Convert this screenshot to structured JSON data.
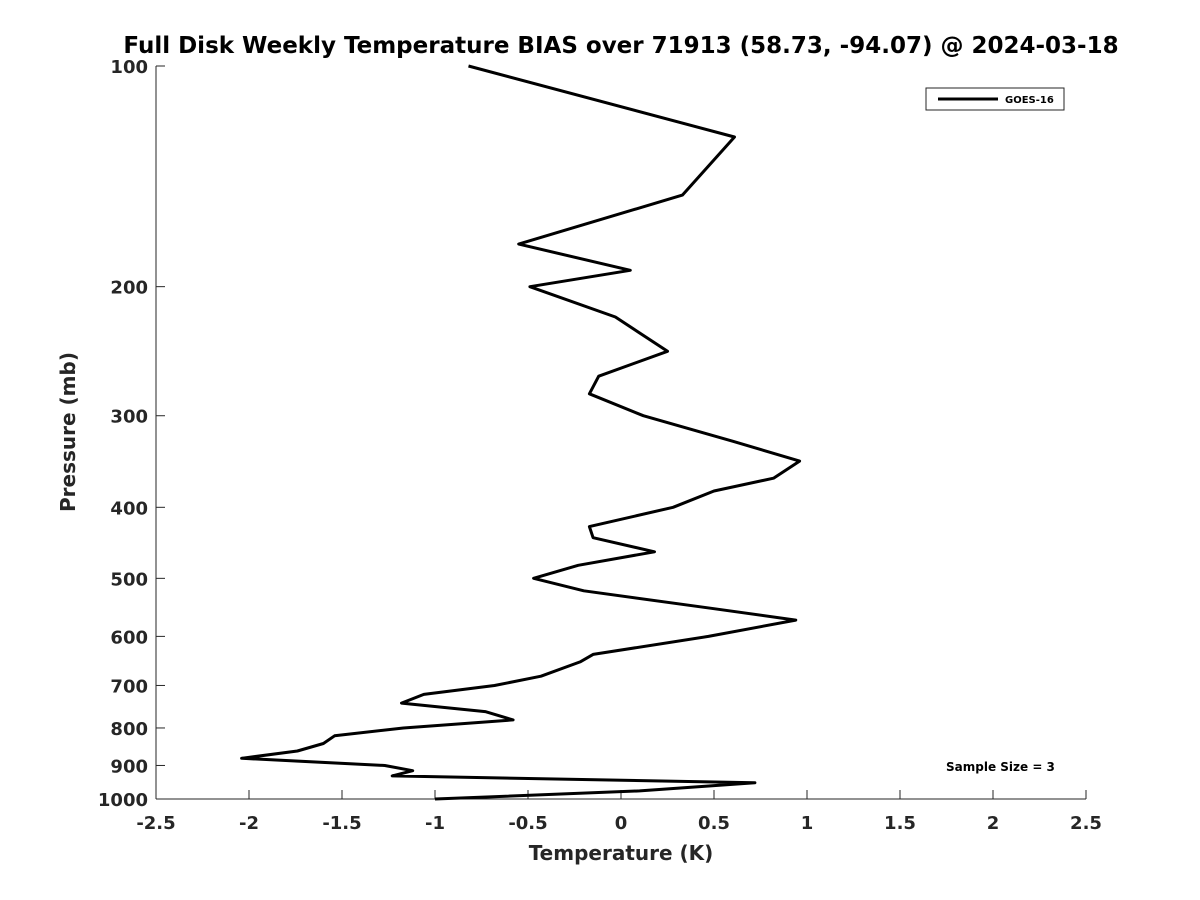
{
  "chart_data": {
    "type": "line",
    "title": "Full Disk Weekly Temperature BIAS over 71913 (58.73, -94.07) @ 2024-03-18",
    "xlabel": "Temperature (K)",
    "ylabel": "Pressure (mb)",
    "xlim": [
      -2.5,
      2.5
    ],
    "ylim": [
      1000,
      100
    ],
    "y_scale": "log",
    "x_ticks": [
      "-2.5",
      "-2",
      "-1.5",
      "-1",
      "-0.5",
      "0",
      "0.5",
      "1",
      "1.5",
      "2",
      "2.5"
    ],
    "y_ticks": [
      "100",
      "200",
      "300",
      "400",
      "500",
      "600",
      "700",
      "800",
      "900",
      "1000"
    ],
    "grid": false,
    "legend_position": "top-right",
    "series": [
      {
        "name": "GOES-16",
        "color": "#000000",
        "points": [
          [
            -0.82,
            100
          ],
          [
            0.61,
            125
          ],
          [
            0.33,
            150
          ],
          [
            -0.55,
            175
          ],
          [
            0.05,
            190
          ],
          [
            -0.49,
            200
          ],
          [
            -0.03,
            220
          ],
          [
            0.25,
            245
          ],
          [
            -0.12,
            265
          ],
          [
            -0.17,
            280
          ],
          [
            0.12,
            300
          ],
          [
            0.6,
            325
          ],
          [
            0.96,
            346
          ],
          [
            0.82,
            365
          ],
          [
            0.5,
            380
          ],
          [
            0.28,
            400
          ],
          [
            -0.17,
            425
          ],
          [
            -0.15,
            440
          ],
          [
            0.18,
            460
          ],
          [
            -0.23,
            480
          ],
          [
            -0.47,
            500
          ],
          [
            -0.2,
            520
          ],
          [
            0.5,
            550
          ],
          [
            0.94,
            570
          ],
          [
            0.47,
            600
          ],
          [
            -0.15,
            635
          ],
          [
            -0.22,
            650
          ],
          [
            -0.43,
            680
          ],
          [
            -0.68,
            700
          ],
          [
            -1.06,
            720
          ],
          [
            -1.18,
            740
          ],
          [
            -0.73,
            760
          ],
          [
            -0.58,
            780
          ],
          [
            -1.17,
            800
          ],
          [
            -1.54,
            820
          ],
          [
            -1.6,
            840
          ],
          [
            -1.74,
            860
          ],
          [
            -2.04,
            880
          ],
          [
            -1.27,
            900
          ],
          [
            -1.12,
            915
          ],
          [
            -1.23,
            930
          ],
          [
            0.72,
            950
          ],
          [
            0.1,
            975
          ],
          [
            -1.0,
            1000
          ]
        ]
      }
    ],
    "annotations": [
      "Sample Size = 3"
    ]
  }
}
